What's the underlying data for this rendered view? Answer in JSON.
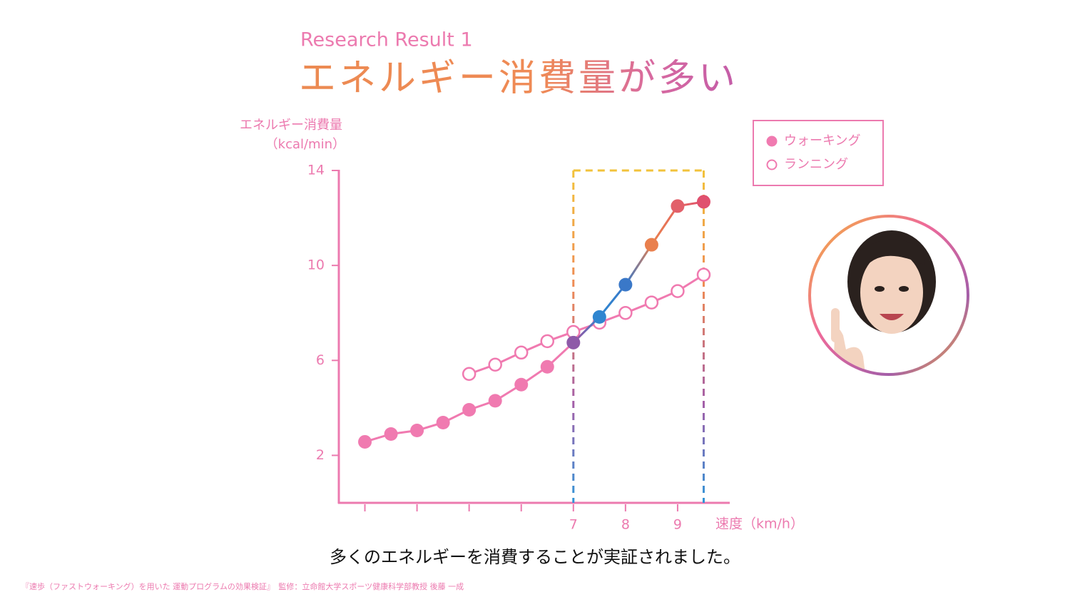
{
  "chart_data": {
    "type": "line",
    "subtitle": "Research Result 1",
    "title": "エネルギー消費量が多い",
    "y_label": [
      "エネルギー消費量",
      "（kcal/min）"
    ],
    "x_label": "速度（km/h）",
    "x": [
      3,
      3.5,
      4,
      4.5,
      5,
      5.5,
      6,
      6.5,
      7,
      7.5,
      8,
      8.5,
      9,
      9.5
    ],
    "series": [
      {
        "name": "ウォーキング",
        "color": "#f07ab0",
        "filled": true,
        "values": [
          2.57,
          2.9,
          3.05,
          3.38,
          3.92,
          4.3,
          4.98,
          5.73,
          6.75,
          7.83,
          9.19,
          10.87,
          12.5,
          12.68
        ],
        "point_colors": [
          "#f07ab0",
          "#f07ab0",
          "#f07ab0",
          "#f07ab0",
          "#f07ab0",
          "#f07ab0",
          "#f07ab0",
          "#f07ab0",
          "#8e5aa8",
          "#2f86d0",
          "#3a78c8",
          "#e9804e",
          "#e2606a",
          "#e0506e"
        ]
      },
      {
        "name": "ランニング",
        "color": "#f07ab0",
        "filled": false,
        "values": [
          null,
          null,
          null,
          null,
          5.43,
          5.82,
          6.33,
          6.81,
          7.2,
          7.59,
          8.0,
          8.44,
          8.92,
          9.61
        ]
      }
    ],
    "xlim": [
      2.5,
      10
    ],
    "xticks": [
      {
        "value": 3,
        "label": null
      },
      {
        "value": 4,
        "label": null
      },
      {
        "value": 5,
        "label": null
      },
      {
        "value": 6,
        "label": null
      },
      7,
      8,
      9
    ],
    "ylim": [
      0,
      14
    ],
    "yticks": [
      2,
      6,
      10,
      14
    ],
    "highlight_range": [
      7,
      9.5
    ],
    "legend": "top-right",
    "caption": "多くのエネルギーを消費することが実証されました。",
    "source": "『速歩（ファストウォーキング）を用いた 運動プログラムの効果検証』　監修：立命館大学スポーツ健康科学部教授 後藤 一成"
  }
}
